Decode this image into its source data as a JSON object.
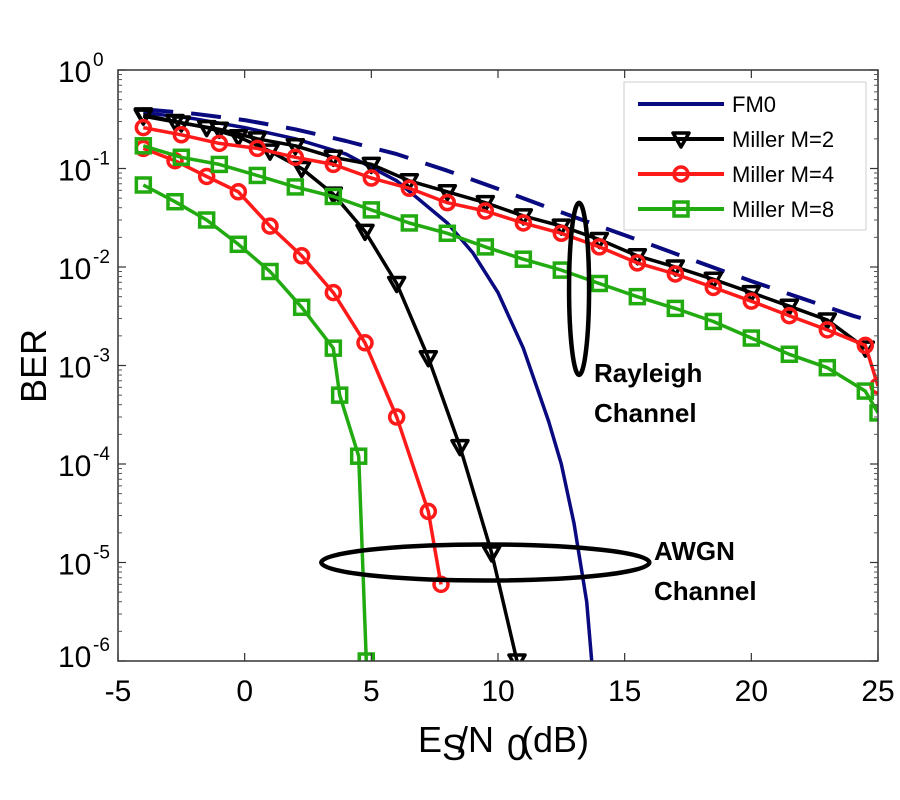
{
  "chart_data": {
    "type": "line",
    "title": "",
    "xlabel": "Es/N0 (dB)",
    "xlabel_parts": {
      "main1": "E",
      "sub1": "S",
      "main2": "/N",
      "sub2": "0",
      "main3": " (dB)"
    },
    "ylabel": "BER",
    "xlim": [
      -5,
      25
    ],
    "ylim": [
      1e-06,
      1
    ],
    "yscale": "log",
    "grid": false,
    "x_ticks": [
      "-5",
      "0",
      "5",
      "10",
      "15",
      "20",
      "25"
    ],
    "x_tick_values": [
      -5,
      0,
      5,
      10,
      15,
      20,
      25
    ],
    "y_ticks": [
      {
        "base": "10",
        "exp": "0"
      },
      {
        "base": "10",
        "exp": "-1"
      },
      {
        "base": "10",
        "exp": "-2"
      },
      {
        "base": "10",
        "exp": "-3"
      },
      {
        "base": "10",
        "exp": "-4"
      },
      {
        "base": "10",
        "exp": "-5"
      },
      {
        "base": "10",
        "exp": "-6"
      }
    ],
    "legend": {
      "placement": "top-right",
      "entries": [
        {
          "label": "FM0",
          "color": "#0a0a80",
          "marker": "none"
        },
        {
          "label": "Miller M=2",
          "color": "#000000",
          "marker": "triangle-down"
        },
        {
          "label": "Miller M=4",
          "color": "#ff1a1a",
          "marker": "circle"
        },
        {
          "label": "Miller M=8",
          "color": "#22aa11",
          "marker": "square"
        }
      ]
    },
    "series": [
      {
        "name": "FM0",
        "channel": "AWGN",
        "color": "#0a0a80",
        "style": "solid",
        "marker": "none",
        "x": [
          -4,
          -2,
          0,
          2,
          4,
          6,
          8,
          9,
          10,
          11,
          12,
          12.5,
          13,
          13.5,
          13.7
        ],
        "y": [
          0.37,
          0.32,
          0.26,
          0.2,
          0.14,
          0.075,
          0.028,
          0.014,
          0.0055,
          0.0015,
          0.00027,
          0.0001,
          2.5e-05,
          4e-06,
          1e-06
        ]
      },
      {
        "name": "FM0",
        "channel": "Rayleigh",
        "color": "#0a0a80",
        "style": "dashed",
        "marker": "none",
        "x": [
          -4,
          -2,
          0,
          2,
          4,
          6,
          8,
          10,
          12,
          14,
          16,
          18,
          20,
          22,
          24,
          25
        ],
        "y": [
          0.4,
          0.36,
          0.31,
          0.25,
          0.19,
          0.14,
          0.095,
          0.062,
          0.04,
          0.026,
          0.017,
          0.011,
          0.0072,
          0.0048,
          0.0032,
          0.0027
        ]
      },
      {
        "name": "Miller M=2",
        "channel": "AWGN",
        "color": "#000000",
        "style": "solid",
        "marker": "triangle-down",
        "x": [
          -4,
          -2.75,
          -1.5,
          -0.25,
          1,
          2.25,
          3.5,
          4.75,
          6,
          7.25,
          8.5,
          9.75,
          10.75
        ],
        "y": [
          0.35,
          0.3,
          0.26,
          0.21,
          0.15,
          0.1,
          0.055,
          0.023,
          0.0068,
          0.0012,
          0.00015,
          1.25e-05,
          1e-06
        ]
      },
      {
        "name": "Miller M=2",
        "channel": "Rayleigh",
        "color": "#000000",
        "style": "solid",
        "marker": "triangle-down",
        "x": [
          -4,
          -2.5,
          -1,
          0.5,
          2,
          3.5,
          5,
          6.5,
          8,
          9.5,
          11,
          12.5,
          14,
          15.5,
          17,
          18.5,
          20,
          21.5,
          23,
          24.5
        ],
        "y": [
          0.34,
          0.29,
          0.25,
          0.2,
          0.17,
          0.13,
          0.11,
          0.075,
          0.058,
          0.045,
          0.033,
          0.026,
          0.019,
          0.013,
          0.01,
          0.0075,
          0.0055,
          0.004,
          0.0029,
          0.0015
        ]
      },
      {
        "name": "Miller M=4",
        "channel": "AWGN",
        "color": "#ff1a1a",
        "style": "solid",
        "marker": "circle",
        "x": [
          -4,
          -2.75,
          -1.5,
          -0.25,
          1,
          2.25,
          3.5,
          4.75,
          6,
          7.25,
          7.75
        ],
        "y": [
          0.16,
          0.12,
          0.083,
          0.058,
          0.026,
          0.013,
          0.0055,
          0.0017,
          0.0003,
          3.3e-05,
          6e-06
        ]
      },
      {
        "name": "Miller M=4",
        "channel": "Rayleigh",
        "color": "#ff1a1a",
        "style": "solid",
        "marker": "circle",
        "x": [
          -4,
          -2.5,
          -1,
          0.5,
          2,
          3.5,
          5,
          6.5,
          8,
          9.5,
          11,
          12.5,
          14,
          15.5,
          17,
          18.5,
          20,
          21.5,
          23,
          24.5,
          25
        ],
        "y": [
          0.26,
          0.22,
          0.18,
          0.16,
          0.13,
          0.11,
          0.08,
          0.063,
          0.045,
          0.037,
          0.028,
          0.022,
          0.016,
          0.011,
          0.0085,
          0.0062,
          0.0045,
          0.0032,
          0.0023,
          0.0016,
          0.00062
        ]
      },
      {
        "name": "Miller M=8",
        "channel": "AWGN",
        "color": "#22aa11",
        "style": "solid",
        "marker": "square",
        "x": [
          -4,
          -2.75,
          -1.5,
          -0.25,
          1,
          2.25,
          3.5,
          3.75,
          4.5,
          4.8
        ],
        "y": [
          0.068,
          0.046,
          0.03,
          0.017,
          0.009,
          0.0039,
          0.0015,
          0.0005,
          0.00012,
          1e-06
        ]
      },
      {
        "name": "Miller M=8",
        "channel": "Rayleigh",
        "color": "#22aa11",
        "style": "solid",
        "marker": "square",
        "x": [
          -4,
          -2.5,
          -1,
          0.5,
          2,
          3.5,
          5,
          6.5,
          8,
          9.5,
          11,
          12.5,
          14,
          15.5,
          17,
          18.5,
          20,
          21.5,
          23,
          24.5,
          25
        ],
        "y": [
          0.17,
          0.13,
          0.11,
          0.085,
          0.065,
          0.052,
          0.038,
          0.028,
          0.022,
          0.016,
          0.012,
          0.0093,
          0.0068,
          0.005,
          0.0038,
          0.0028,
          0.0019,
          0.0013,
          0.00095,
          0.00055,
          0.00033
        ]
      }
    ],
    "annotations": [
      {
        "text_lines": [
          "Rayleigh",
          "Channel"
        ],
        "ellipse_center": [
          13.2,
          0.006
        ],
        "at_x": 14.2,
        "at_y": 0.0012
      },
      {
        "text_lines": [
          "AWGN",
          "Channel"
        ],
        "ellipse_center": [
          9.5,
          1e-05
        ],
        "at_x": 16.5,
        "at_y": 1e-05
      }
    ]
  }
}
